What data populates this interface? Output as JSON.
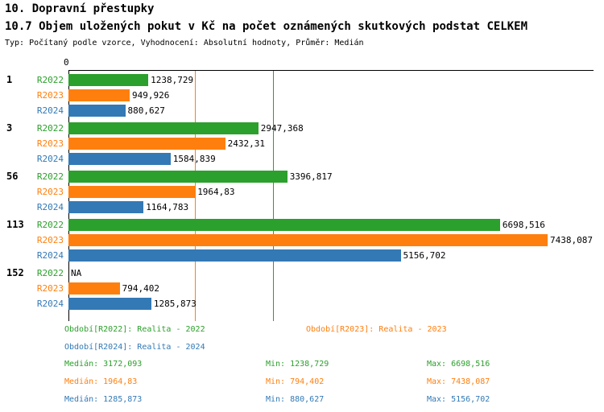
{
  "header": {
    "title": "10. Dopravní přestupky",
    "subtitle": "10.7 Objem uložených pokut v Kč na počet oznámených skutkových podstat CELKEM",
    "meta": "Typ: Počítaný podle vzorce, Vyhodnocení: Absolutní hodnoty, Průměr: Medián"
  },
  "chart_data": {
    "type": "bar",
    "orientation": "horizontal",
    "title": "10.7 Objem uložených pokut v Kč na počet oznámených skutkových podstat CELKEM",
    "xlim": [
      0,
      8125
    ],
    "zero_tick_label": "0",
    "series": [
      {
        "id": "R2022",
        "label": "R2022",
        "name": "Realita - 2022",
        "color": "#2ca02c"
      },
      {
        "id": "R2023",
        "label": "R2023",
        "name": "Realita - 2023",
        "color": "#ff7f0e"
      },
      {
        "id": "R2024",
        "label": "R2024",
        "name": "Realita - 2024",
        "color": "#3379b5"
      }
    ],
    "groups": [
      {
        "label": "1",
        "bars": [
          {
            "series": "R2022",
            "value": 1238.729,
            "value_label": "1238,729"
          },
          {
            "series": "R2023",
            "value": 949.926,
            "value_label": "949,926"
          },
          {
            "series": "R2024",
            "value": 880.627,
            "value_label": "880,627"
          }
        ]
      },
      {
        "label": "3",
        "bars": [
          {
            "series": "R2022",
            "value": 2947.368,
            "value_label": "2947,368"
          },
          {
            "series": "R2023",
            "value": 2432.31,
            "value_label": "2432,31"
          },
          {
            "series": "R2024",
            "value": 1584.839,
            "value_label": "1584,839"
          }
        ]
      },
      {
        "label": "56",
        "bars": [
          {
            "series": "R2022",
            "value": 3396.817,
            "value_label": "3396,817"
          },
          {
            "series": "R2023",
            "value": 1964.83,
            "value_label": "1964,83"
          },
          {
            "series": "R2024",
            "value": 1164.783,
            "value_label": "1164,783"
          }
        ]
      },
      {
        "label": "113",
        "bars": [
          {
            "series": "R2022",
            "value": 6698.516,
            "value_label": "6698,516"
          },
          {
            "series": "R2023",
            "value": 7438.087,
            "value_label": "7438,087"
          },
          {
            "series": "R2024",
            "value": 5156.702,
            "value_label": "5156,702"
          }
        ]
      },
      {
        "label": "152",
        "bars": [
          {
            "series": "R2022",
            "value": null,
            "value_label": "NA"
          },
          {
            "series": "R2023",
            "value": 794.402,
            "value_label": "794,402"
          },
          {
            "series": "R2024",
            "value": 1285.873,
            "value_label": "1285,873"
          }
        ]
      }
    ],
    "median_lines": [
      {
        "series": "R2023",
        "value": 1964.83,
        "color": "#ff7f0e"
      },
      {
        "series": "R2022",
        "value": 3172.093,
        "color": "#2ca02c"
      }
    ]
  },
  "legend": {
    "items": [
      {
        "label": "Období[R2022]: Realita - 2022",
        "color": "#2ca02c"
      },
      {
        "label": "Období[R2023]: Realita - 2023",
        "color": "#ff7f0e"
      },
      {
        "label": "Období[R2024]: Realita - 2024",
        "color": "#3379b5"
      }
    ]
  },
  "stats": {
    "rows": [
      {
        "median": "Medián: 3172,093",
        "min": "Min: 1238,729",
        "max": "Max: 6698,516",
        "color": "#2ca02c"
      },
      {
        "median": "Medián: 1964,83",
        "min": "Min: 794,402",
        "max": "Max: 7438,087",
        "color": "#ff7f0e"
      },
      {
        "median": "Medián: 1285,873",
        "min": "Min: 880,627",
        "max": "Max: 5156,702",
        "color": "#3379b5"
      }
    ]
  }
}
